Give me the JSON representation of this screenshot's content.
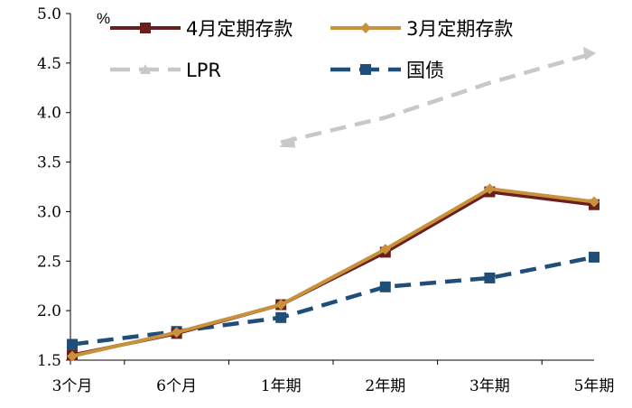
{
  "chart_data": {
    "type": "line",
    "ylabel": "%",
    "ylim": [
      1.5,
      5.0
    ],
    "yticks": [
      "1.5",
      "2.0",
      "2.5",
      "3.0",
      "3.5",
      "4.0",
      "4.5",
      "5.0"
    ],
    "categories": [
      "3个月",
      "6个月",
      "1年期",
      "2年期",
      "3年期",
      "5年期"
    ],
    "grid": false,
    "legend_position": "top",
    "series": [
      {
        "name": "4月定期存款",
        "color": "#6B1E1E",
        "dash": "solid",
        "marker": "square",
        "values": [
          1.55,
          1.77,
          2.06,
          2.59,
          3.2,
          3.07
        ]
      },
      {
        "name": "3月定期存款",
        "color": "#C8913C",
        "dash": "solid",
        "marker": "diamond",
        "values": [
          1.54,
          1.78,
          2.06,
          2.62,
          3.23,
          3.1
        ]
      },
      {
        "name": "LPR",
        "color": "#C8C8C8",
        "dash": "dash",
        "marker": "triangle",
        "values": [
          null,
          null,
          3.7,
          3.95,
          4.3,
          4.6
        ]
      },
      {
        "name": "国债",
        "color": "#1F4E79",
        "dash": "dash",
        "marker": "square",
        "values": [
          1.66,
          1.79,
          1.93,
          2.24,
          2.33,
          2.54
        ]
      }
    ]
  }
}
